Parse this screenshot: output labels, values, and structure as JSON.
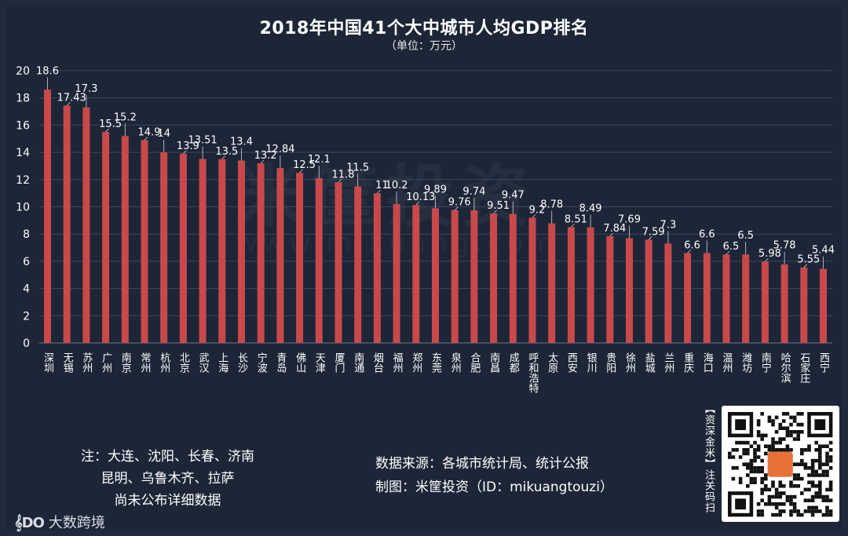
{
  "page": {
    "title": "2018年中国41个大中城市人均GDP排名",
    "subtitle": "（单位：万元）",
    "watermark": "米筐投资",
    "watermark_url": "www.mikuang.com"
  },
  "chart_data": {
    "type": "bar",
    "title": "2018年中国41个大中城市人均GDP排名",
    "subtitle": "（单位：万元）",
    "xlabel": "",
    "ylabel": "",
    "ylim": [
      0,
      20
    ],
    "yticks": [
      0,
      2,
      4,
      6,
      8,
      10,
      12,
      14,
      16,
      18,
      20
    ],
    "grid": true,
    "bar_color": "#c9494b",
    "categories": [
      "深圳",
      "无锡",
      "苏州",
      "广州",
      "南京",
      "常州",
      "杭州",
      "北京",
      "武汉",
      "上海",
      "长沙",
      "宁波",
      "青岛",
      "佛山",
      "天津",
      "厦门",
      "南通",
      "烟台",
      "福州",
      "郑州",
      "东莞",
      "泉州",
      "合肥",
      "南昌",
      "成都",
      "呼和浩特",
      "太原",
      "西安",
      "银川",
      "贵阳",
      "徐州",
      "盐城",
      "兰州",
      "重庆",
      "海口",
      "温州",
      "潍坊",
      "南宁",
      "哈尔滨",
      "石家庄",
      "西宁"
    ],
    "values": [
      18.6,
      17.43,
      17.3,
      15.5,
      15.2,
      14.9,
      14,
      13.9,
      13.51,
      13.5,
      13.4,
      13.2,
      12.84,
      12.5,
      12.1,
      11.8,
      11.5,
      11,
      10.2,
      10.13,
      9.89,
      9.76,
      9.74,
      9.51,
      9.47,
      9.2,
      8.78,
      8.51,
      8.49,
      7.84,
      7.69,
      7.59,
      7.3,
      6.6,
      6.6,
      6.5,
      6.5,
      5.98,
      5.78,
      5.55,
      5.44
    ],
    "data_labels": [
      "18.6",
      "17.43",
      "17.3",
      "15.5",
      "15.2",
      "14.9",
      "14",
      "13.9",
      "13.51",
      "13.5",
      "13.4",
      "13.2",
      "12.84",
      "12.5",
      "12.1",
      "11.8",
      "11.5",
      "11",
      "10.2",
      "10.13",
      "9.89",
      "9.76",
      "9.74",
      "9.51",
      "9.47",
      "9.2",
      "8.78",
      "8.51",
      "8.49",
      "7.84",
      "7.69",
      "7.59",
      "7.3",
      "6.6",
      "6.6",
      "6.5",
      "6.5",
      "5.98",
      "5.78",
      "5.55",
      "5.44"
    ]
  },
  "footer": {
    "note_lines": [
      "注：大连、沈阳、长春、济南",
      "昆明、乌鲁木齐、拉萨",
      "尚未公布详细数据"
    ],
    "source": "数据来源：各城市统计局、统计公报",
    "credit": "制图：米筐投资（ID：mikuangtouzi）",
    "qr_caption": "【资深金米】注关码扫",
    "brand_logo": "𝄞DO",
    "brand_name": "大数跨境"
  }
}
